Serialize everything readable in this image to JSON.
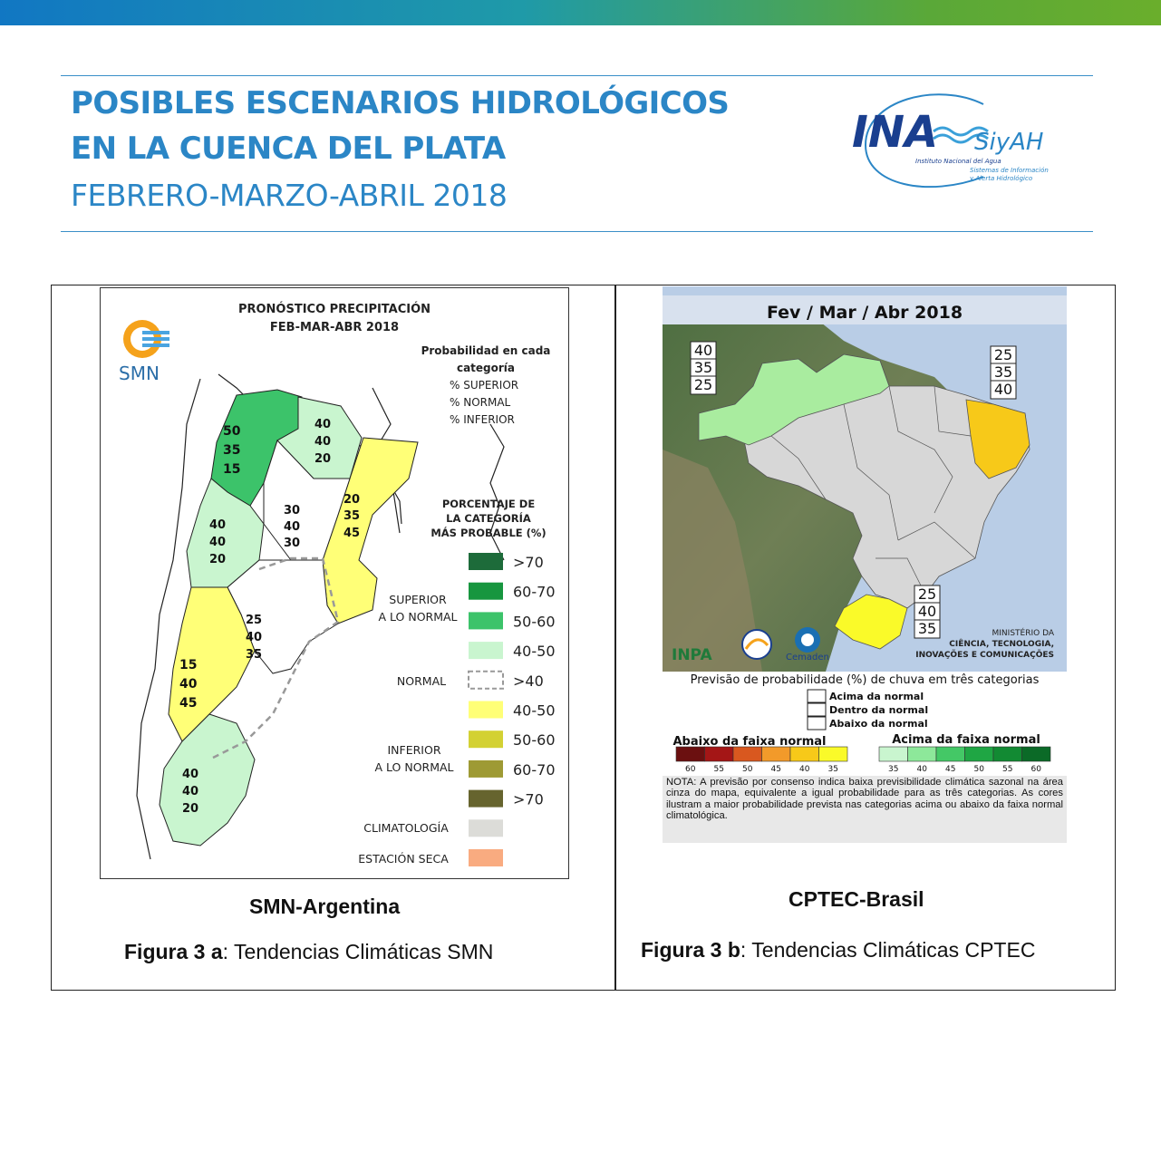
{
  "header": {
    "title_line1": "POSIBLES ESCENARIOS HIDROLÓGICOS",
    "title_line2": "EN LA CUENCA DEL PLATA",
    "title_line3": "FEBRERO-MARZO-ABRIL 2018"
  },
  "logo": {
    "ina": "INA",
    "siyah": "SiyAH",
    "sub1": "Instituto Nacional del Agua",
    "sub2": "Sistemas de Información",
    "sub3": "y Alerta Hidrológico"
  },
  "smn_map": {
    "title1": "PRONÓSTICO PRECIPITACIÓN",
    "title2": "FEB-MAR-ABR 2018",
    "agency": "SMN",
    "prob_title1": "Probabilidad en cada",
    "prob_title2": "categoría",
    "prob_sup": "% SUPERIOR",
    "prob_norm": "% NORMAL",
    "prob_inf": "% INFERIOR",
    "pct_title1": "PORCENTAJE DE",
    "pct_title2": "LA CATEGORÍA",
    "pct_title3": "MÁS PROBABLE (%)",
    "group_superior1": "SUPERIOR",
    "group_superior2": "A LO NORMAL",
    "group_normal": "NORMAL",
    "group_inferior1": "INFERIOR",
    "group_inferior2": "A LO NORMAL",
    "climatologia": "CLIMATOLOGÍA",
    "estacion_seca": "ESTACIÓN SECA",
    "legend": [
      {
        "label": ">70",
        "color": "#1d6b3a"
      },
      {
        "label": "60-70",
        "color": "#17963f"
      },
      {
        "label": "50-60",
        "color": "#3cc36a"
      },
      {
        "label": "40-50",
        "color": "#c9f5cf"
      },
      {
        "label": ">40",
        "color": "#ffffff"
      },
      {
        "label": "40-50",
        "color": "#ffff77"
      },
      {
        "label": "50-60",
        "color": "#d3d133"
      },
      {
        "label": "60-70",
        "color": "#9e9a34"
      },
      {
        "label": ">70",
        "color": "#66642e"
      },
      {
        "label": "",
        "color": "#dcdcd8"
      },
      {
        "label": "",
        "color": "#f9ab80"
      }
    ],
    "regions": [
      {
        "sup": "50",
        "norm": "35",
        "inf": "15"
      },
      {
        "sup": "40",
        "norm": "40",
        "inf": "20"
      },
      {
        "sup": "20",
        "norm": "35",
        "inf": "45"
      },
      {
        "sup": "30",
        "norm": "40",
        "inf": "30"
      },
      {
        "sup": "40",
        "norm": "40",
        "inf": "20"
      },
      {
        "sup": "25",
        "norm": "40",
        "inf": "35"
      },
      {
        "sup": "15",
        "norm": "40",
        "inf": "45"
      },
      {
        "sup": "40",
        "norm": "40",
        "inf": "20"
      }
    ]
  },
  "cptec_map": {
    "title": "Fev / Mar / Abr 2018",
    "box_nw": [
      "40",
      "35",
      "25"
    ],
    "box_ne": [
      "25",
      "35",
      "40"
    ],
    "box_s": [
      "25",
      "40",
      "35"
    ],
    "ministry1": "MINISTÉRIO DA",
    "ministry2": "CIÊNCIA, TECNOLOGIA,",
    "ministry3": "INOVAÇÕES E COMUNICAÇÕES",
    "inpa": "INPA",
    "cemaden": "Cemaden",
    "legend_title": "Previsão de probabilidade (%) de chuva em três categorias",
    "cat_above": "Acima da normal",
    "cat_within": "Dentro da normal",
    "cat_below": "Abaixo da normal",
    "below_title": "Abaixo da faixa normal",
    "above_title": "Acima da faixa normal",
    "below_colors": [
      "#6b1010",
      "#a41616",
      "#d9581f",
      "#f29a2a",
      "#f7c919",
      "#fafa29"
    ],
    "below_ticks": [
      "60",
      "55",
      "50",
      "45",
      "40",
      "35"
    ],
    "above_colors": [
      "#c9f5cf",
      "#8de89a",
      "#44c866",
      "#1fa644",
      "#128a33",
      "#0b6a27"
    ],
    "above_ticks": [
      "35",
      "40",
      "45",
      "50",
      "55",
      "60"
    ],
    "note": "NOTA: A previsão por consenso indica baixa previsibilidade climática sazonal na área cinza do mapa, equivalente a igual probabilidade para as três categorias. As cores ilustram a maior probabilidade prevista nas categorias acima ou abaixo da faixa normal climatológica."
  },
  "captions": {
    "left_source": "SMN-Argentina",
    "left_fig_bold": "Figura 3 a",
    "left_fig_text": ": Tendencias Climáticas SMN",
    "right_source": "CPTEC-Brasil",
    "right_fig_bold": "Figura 3 b",
    "right_fig_text": ": Tendencias Climáticas CPTEC"
  }
}
